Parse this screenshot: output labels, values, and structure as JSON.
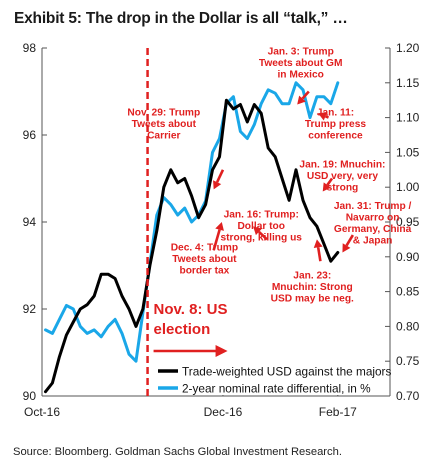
{
  "title": "Exhibit 5: The drop in the Dollar is all “talk,” …",
  "source": "Source: Bloomberg. Goldman Sachs Global Investment Research.",
  "colors": {
    "usd": "#000000",
    "rate": "#1aa7e8",
    "annotation": "#e02020",
    "axis": "#555555"
  },
  "chart_data": {
    "type": "line",
    "xlim": [
      0,
      30
    ],
    "x_ticks": [
      {
        "x": 0,
        "label": "Oct-16"
      },
      {
        "x": 15.6,
        "label": "Dec-16"
      },
      {
        "x": 25.5,
        "label": "Feb-17"
      }
    ],
    "y_left": {
      "lim": [
        90,
        98
      ],
      "ticks": [
        90,
        92,
        94,
        96,
        98
      ]
    },
    "y_right": {
      "lim": [
        0.7,
        1.2
      ],
      "ticks": [
        "0.70",
        "0.75",
        "0.80",
        "0.85",
        "0.90",
        "0.95",
        "1.00",
        "1.05",
        "1.10",
        "1.15",
        "1.20"
      ]
    },
    "series": [
      {
        "name": "Trade-weighted USD against the majors",
        "axis": "left",
        "x": [
          0.3,
          0.9,
          1.5,
          2.1,
          2.7,
          3.3,
          3.9,
          4.5,
          5.1,
          5.7,
          6.3,
          6.9,
          7.5,
          8.1,
          8.7,
          9.3,
          9.9,
          10.5,
          11.1,
          11.7,
          12.3,
          12.9,
          13.5,
          14.1,
          14.7,
          15.3,
          15.9,
          16.5,
          17.1,
          17.7,
          18.3,
          18.9,
          19.5,
          20.1,
          20.7,
          21.3,
          21.9,
          22.5,
          23.1,
          23.7,
          24.3,
          24.9,
          25.5
        ],
        "y": [
          90.1,
          90.3,
          90.9,
          91.4,
          91.7,
          92.0,
          92.1,
          92.3,
          92.8,
          92.8,
          92.7,
          92.3,
          92.0,
          91.6,
          92.0,
          93.0,
          93.8,
          94.8,
          95.2,
          94.9,
          95.0,
          94.6,
          94.1,
          94.4,
          95.2,
          95.5,
          96.8,
          96.6,
          96.7,
          96.3,
          96.7,
          96.5,
          95.7,
          95.5,
          95.0,
          94.5,
          95.2,
          94.5,
          94.1,
          93.9,
          93.5,
          93.1,
          93.3
        ]
      },
      {
        "name": "2-year nominal rate differential, in %",
        "axis": "right",
        "x": [
          0.3,
          0.9,
          1.5,
          2.1,
          2.7,
          3.3,
          3.9,
          4.5,
          5.1,
          5.7,
          6.3,
          6.9,
          7.5,
          8.1,
          8.7,
          9.3,
          9.9,
          10.5,
          11.1,
          11.7,
          12.3,
          12.9,
          13.5,
          14.1,
          14.7,
          15.3,
          15.9,
          16.5,
          17.1,
          17.7,
          18.3,
          18.9,
          19.5,
          20.1,
          20.7,
          21.3,
          21.9,
          22.5,
          23.1,
          23.7,
          24.3,
          24.9,
          25.5
        ],
        "y": [
          0.795,
          0.79,
          0.81,
          0.83,
          0.825,
          0.8,
          0.79,
          0.795,
          0.785,
          0.8,
          0.81,
          0.79,
          0.76,
          0.75,
          0.82,
          0.89,
          0.96,
          0.985,
          0.975,
          0.96,
          0.97,
          0.95,
          0.96,
          0.98,
          1.05,
          1.07,
          1.12,
          1.13,
          1.08,
          1.07,
          1.09,
          1.12,
          1.14,
          1.135,
          1.12,
          1.12,
          1.15,
          1.14,
          1.1,
          1.13,
          1.13,
          1.12,
          1.15
        ]
      }
    ],
    "event_marker": {
      "x": 9.1,
      "label_line1": "Nov. 8: US",
      "label_line2": "election"
    },
    "annotations": [
      {
        "lines": [
          "Nov. 29: Trump",
          "Tweets about",
          "Carrier"
        ],
        "tx": 10.5,
        "ty": 96.45,
        "ax1": 15.6,
        "ay1": 95.2,
        "ax2": 14.8,
        "ay2": 94.75
      },
      {
        "lines": [
          "Dec. 4: Trump",
          "Tweets about",
          "border tax"
        ],
        "tx": 14.0,
        "ty": 93.35,
        "ax1": 14.8,
        "ay1": 93.35,
        "ax2": 15.5,
        "ay2": 94.0
      },
      {
        "lines": [
          "Jan. 16: Trump:",
          "Dollar too",
          "strong, killing us"
        ],
        "tx": 18.9,
        "ty": 94.1,
        "ax1": 19.4,
        "ay1": 93.6,
        "ax2": 18.2,
        "ay2": 93.9
      },
      {
        "lines": [
          "Jan. 3: Trump",
          "Tweets about GM",
          "in Mexico"
        ],
        "tx": 22.3,
        "ty": 97.85,
        "ax1": 23.0,
        "ay1": 97.0,
        "ax2": 22.0,
        "ay2": 96.7
      },
      {
        "lines": [
          "Jan. 11:",
          "Trump press",
          "conference"
        ],
        "tx": 25.3,
        "ty": 96.45,
        "ax1": 24.7,
        "ay1": 96.4,
        "ax2": 23.8,
        "ay2": 96.5
      },
      {
        "lines": [
          "Jan. 19: Mnuchin:",
          "USD very, very",
          "strong"
        ],
        "tx": 25.9,
        "ty": 95.25,
        "ax1": 25.0,
        "ay1": 95.0,
        "ax2": 24.2,
        "ay2": 94.7
      },
      {
        "lines": [
          "Jan. 31: Trump /",
          "Navarro on",
          "Germany, China",
          "& Japan"
        ],
        "tx": 28.5,
        "ty": 94.3,
        "ax1": 26.8,
        "ay1": 93.7,
        "ax2": 25.9,
        "ay2": 93.3
      },
      {
        "lines": [
          "Jan. 23:",
          "Mnuchin: Strong",
          "USD may be neg."
        ],
        "tx": 23.3,
        "ty": 92.7,
        "ax1": 24.0,
        "ay1": 93.1,
        "ax2": 23.7,
        "ay2": 93.6
      }
    ],
    "legend_position": "bottom-right",
    "legend_arrow_label": ""
  }
}
